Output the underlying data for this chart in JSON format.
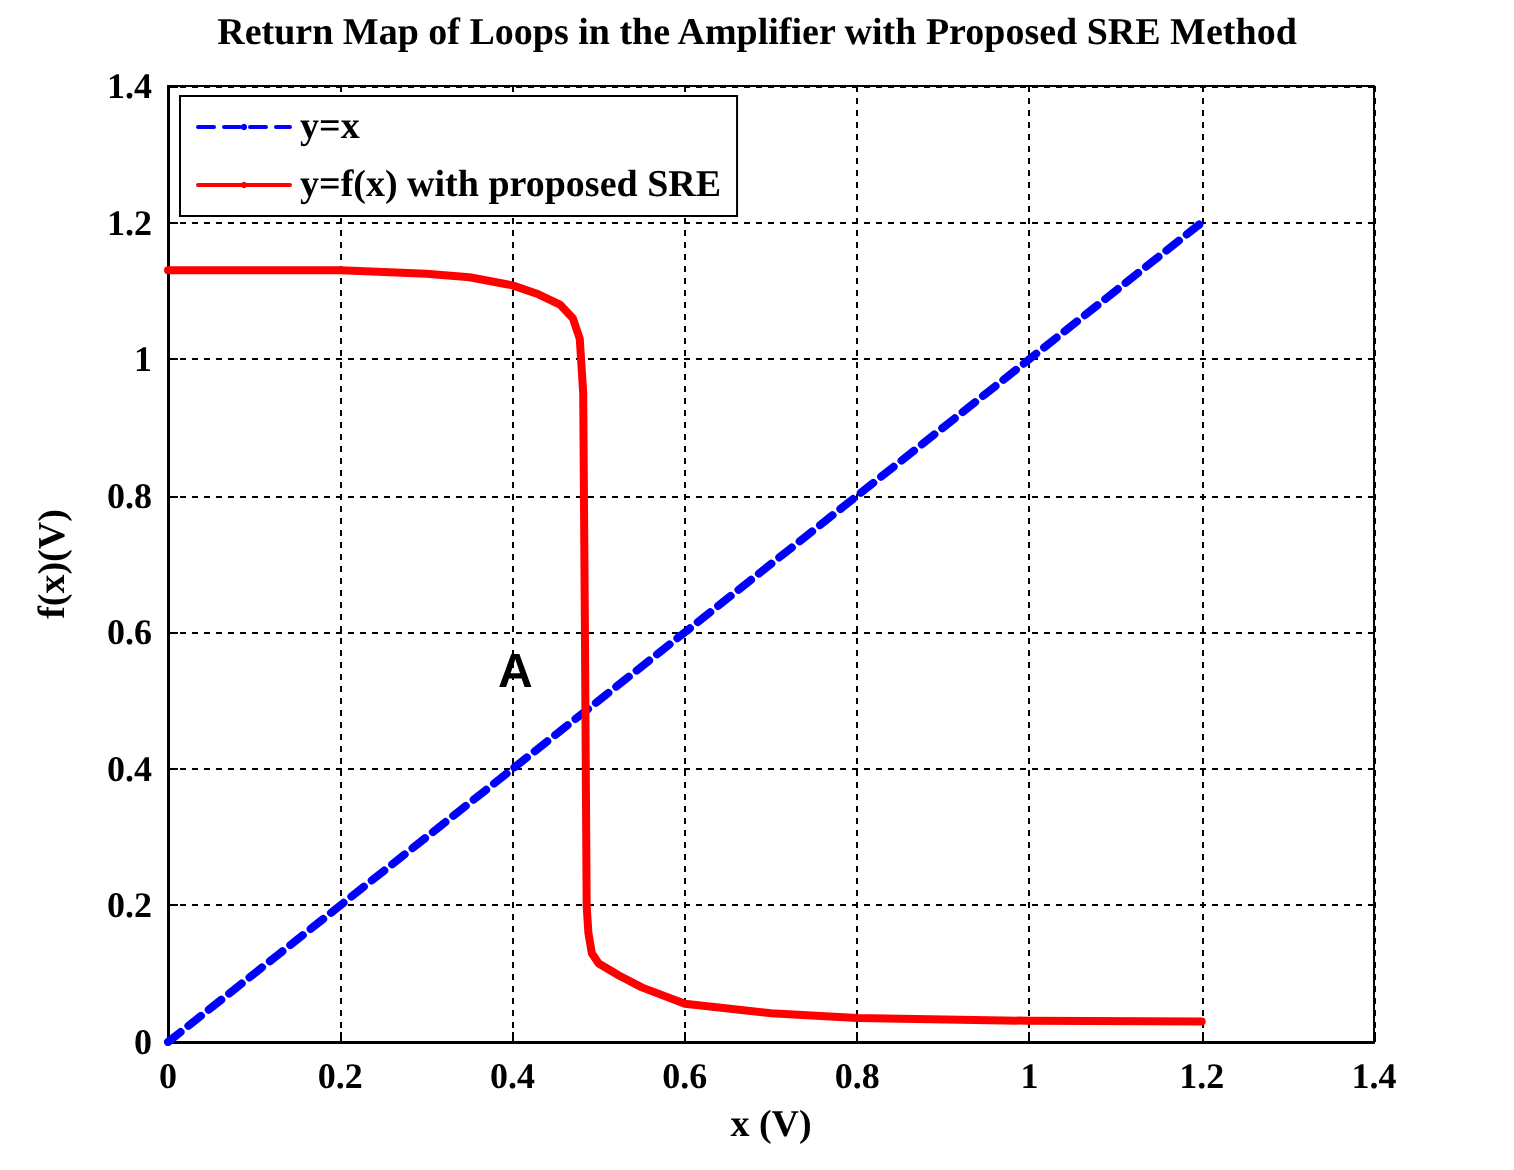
{
  "chart_data": {
    "type": "line",
    "title": "Return Map of Loops in the Amplifier with Proposed SRE Method",
    "xlabel": "x (V)",
    "ylabel": "f(x)(V)",
    "xlim": [
      0,
      1.4
    ],
    "xticks": [
      0,
      0.2,
      0.4,
      0.6,
      0.8,
      1,
      1.2,
      1.4
    ],
    "ylim": [
      0,
      1.4
    ],
    "yticks": [
      0,
      0.2,
      0.4,
      0.6,
      0.8,
      1,
      1.2,
      1.4
    ],
    "grid": true,
    "legend": "top left",
    "marker": "none",
    "annotations": [
      "A"
    ],
    "series": [
      {
        "name": "y=x",
        "color": "#0000ff",
        "line_style": "dashed",
        "x": [
          0,
          1.2
        ],
        "values": [
          0,
          1.2
        ]
      },
      {
        "name": "y=f(x) with proposed SRE",
        "color": "#ff0000",
        "line_style": "solid",
        "x": [
          0,
          0.1,
          0.2,
          0.3,
          0.35,
          0.4,
          0.43,
          0.455,
          0.47,
          0.478,
          0.482,
          0.484,
          0.485,
          0.486,
          0.488,
          0.492,
          0.5,
          0.524,
          0.55,
          0.6,
          0.7,
          0.8,
          1,
          1.2
        ],
        "values": [
          1.13,
          1.13,
          1.13,
          1.125,
          1.12,
          1.108,
          1.095,
          1.08,
          1.06,
          1.03,
          0.95,
          0.6,
          0.4,
          0.2,
          0.16,
          0.13,
          0.115,
          0.097,
          0.08,
          0.056,
          0.042,
          0.035,
          0.031,
          0.03
        ]
      }
    ]
  }
}
